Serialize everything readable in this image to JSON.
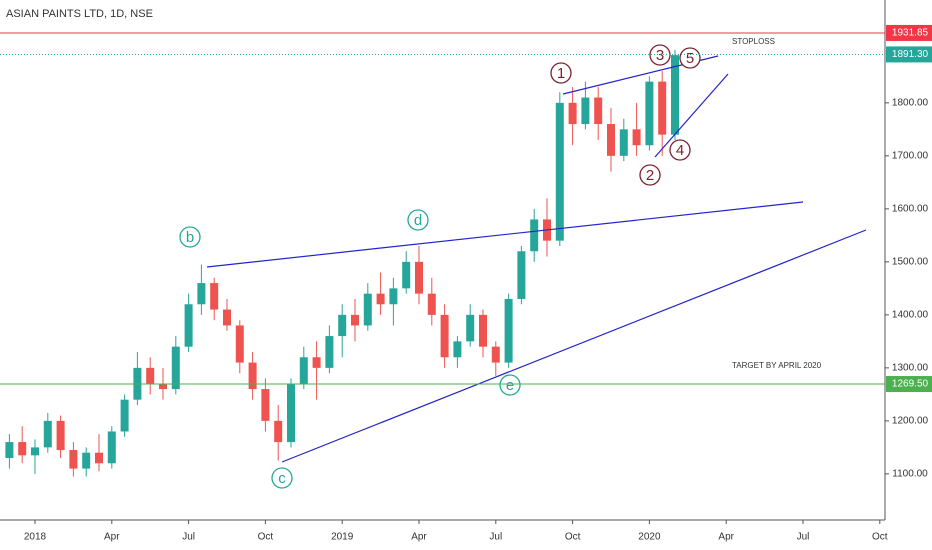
{
  "chart_data": {
    "type": "candlestick",
    "title": "ASIAN PAINTS LTD, 1D, NSE",
    "x": [
      -1,
      -0.5,
      0,
      0.5,
      1,
      1.5,
      2,
      2.5,
      3,
      3.5,
      4,
      4.5,
      5,
      5.5,
      6,
      6.5,
      7,
      7.5,
      8,
      8.5,
      9,
      9.5,
      10,
      10.5,
      11,
      11.5,
      12,
      12.5,
      13,
      13.5,
      14,
      14.5,
      15,
      15.5,
      16,
      16.5,
      17,
      17.5,
      18,
      18.5,
      19,
      19.5,
      20,
      20.5,
      21,
      21.5,
      22,
      22.5,
      23,
      23.5,
      24,
      24.5,
      25
    ],
    "open": [
      1130,
      1160,
      1135,
      1150,
      1200,
      1145,
      1110,
      1140,
      1120,
      1180,
      1240,
      1300,
      1270,
      1260,
      1340,
      1420,
      1460,
      1410,
      1380,
      1310,
      1260,
      1200,
      1160,
      1270,
      1320,
      1300,
      1360,
      1400,
      1380,
      1440,
      1420,
      1450,
      1500,
      1440,
      1400,
      1320,
      1350,
      1400,
      1340,
      1310,
      1430,
      1520,
      1580,
      1540,
      1800,
      1760,
      1810,
      1760,
      1700,
      1750,
      1720,
      1840,
      1740
    ],
    "high": [
      1175,
      1190,
      1165,
      1215,
      1210,
      1160,
      1150,
      1175,
      1190,
      1250,
      1330,
      1320,
      1300,
      1360,
      1440,
      1495,
      1470,
      1430,
      1390,
      1330,
      1280,
      1230,
      1280,
      1340,
      1350,
      1380,
      1420,
      1430,
      1460,
      1480,
      1470,
      1520,
      1530,
      1470,
      1420,
      1360,
      1420,
      1410,
      1350,
      1440,
      1530,
      1600,
      1620,
      1820,
      1830,
      1840,
      1830,
      1790,
      1770,
      1800,
      1850,
      1860,
      1900
    ],
    "low": [
      1110,
      1120,
      1100,
      1140,
      1130,
      1095,
      1095,
      1105,
      1110,
      1170,
      1230,
      1250,
      1240,
      1250,
      1330,
      1400,
      1390,
      1370,
      1290,
      1240,
      1180,
      1125,
      1150,
      1260,
      1240,
      1290,
      1320,
      1350,
      1370,
      1400,
      1380,
      1440,
      1420,
      1380,
      1300,
      1300,
      1340,
      1320,
      1285,
      1300,
      1420,
      1500,
      1510,
      1530,
      1720,
      1750,
      1730,
      1670,
      1690,
      1700,
      1710,
      1700,
      1730
    ],
    "close": [
      1160,
      1135,
      1150,
      1200,
      1145,
      1110,
      1140,
      1120,
      1180,
      1240,
      1300,
      1270,
      1260,
      1340,
      1420,
      1460,
      1410,
      1380,
      1310,
      1260,
      1200,
      1160,
      1270,
      1320,
      1300,
      1360,
      1400,
      1380,
      1440,
      1420,
      1450,
      1500,
      1440,
      1400,
      1320,
      1350,
      1400,
      1340,
      1310,
      1430,
      1520,
      1580,
      1540,
      1800,
      1760,
      1810,
      1760,
      1700,
      1750,
      1720,
      1840,
      1740,
      1890
    ],
    "up_color": "#26a69a",
    "down_color": "#ef5350",
    "xlim": [
      -1.367,
      33.203
    ],
    "xticks": [
      {
        "value": 0,
        "label": "2018"
      },
      {
        "value": 3,
        "label": "Apr"
      },
      {
        "value": 6,
        "label": "Jul"
      },
      {
        "value": 9,
        "label": "Oct"
      },
      {
        "value": 12,
        "label": "2019"
      },
      {
        "value": 15,
        "label": "Apr"
      },
      {
        "value": 18,
        "label": "Jul"
      },
      {
        "value": 21,
        "label": "Oct"
      },
      {
        "value": 24,
        "label": "2020"
      },
      {
        "value": 27,
        "label": "Apr"
      },
      {
        "value": 30,
        "label": "Jul"
      },
      {
        "value": 33,
        "label": "Oct"
      }
    ],
    "ylim": [
      1013,
      1994
    ],
    "yticks": [
      {
        "value": 1100,
        "label": "1100.00"
      },
      {
        "value": 1200,
        "label": "1200.00"
      },
      {
        "value": 1300,
        "label": "1300.00"
      },
      {
        "value": 1400,
        "label": "1400.00"
      },
      {
        "value": 1500,
        "label": "1500.00"
      },
      {
        "value": 1600,
        "label": "1600.00"
      },
      {
        "value": 1700,
        "label": "1700.00"
      },
      {
        "value": 1800,
        "label": "1800.00"
      }
    ],
    "levels": [
      {
        "value": 1931.85,
        "label": "1931.85",
        "color": "#f23645",
        "style": "solid"
      },
      {
        "value": 1891.3,
        "label": "1891.30",
        "color": "#26a69a",
        "style": "dotted"
      },
      {
        "value": 1269.5,
        "label": "1269.50",
        "color": "#4caf50",
        "style": "solid"
      }
    ],
    "annotations": [
      "STOPLOSS",
      "TARGET BY APRIL 2020"
    ],
    "wave_labels": [
      "b",
      "d",
      "c",
      "e",
      "1",
      "2",
      "3",
      "4",
      "5"
    ]
  }
}
